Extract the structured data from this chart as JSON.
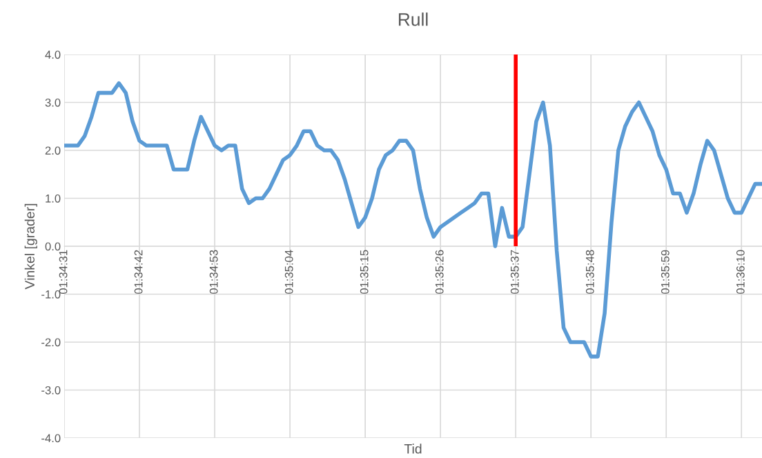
{
  "chart_data": {
    "type": "line",
    "title": "Rull",
    "xlabel": "Tid",
    "ylabel": "Vinkel [grader]",
    "categories": [
      "01:34:31",
      null,
      null,
      null,
      null,
      null,
      null,
      null,
      null,
      null,
      null,
      "01:34:42",
      null,
      null,
      null,
      null,
      null,
      null,
      null,
      null,
      null,
      null,
      "01:34:53",
      null,
      null,
      null,
      null,
      null,
      null,
      null,
      null,
      null,
      null,
      "01:35:04",
      null,
      null,
      null,
      null,
      null,
      null,
      null,
      null,
      null,
      null,
      "01:35:15",
      null,
      null,
      null,
      null,
      null,
      null,
      null,
      null,
      null,
      null,
      "01:35:26",
      null,
      null,
      null,
      null,
      null,
      null,
      null,
      null,
      null,
      null,
      "01:35:37",
      null,
      null,
      null,
      null,
      null,
      null,
      null,
      null,
      null,
      null,
      "01:35:48",
      null,
      null,
      null,
      null,
      null,
      null,
      null,
      null,
      null,
      null,
      "01:35:59",
      null,
      null,
      null,
      null,
      null,
      null,
      null,
      null,
      null,
      null,
      "01:36:10",
      null,
      null,
      null
    ],
    "series": [
      {
        "color": "#5b9bd5",
        "values": [
          2.1,
          2.1,
          2.1,
          2.3,
          2.7,
          3.2,
          3.2,
          3.2,
          3.4,
          3.2,
          2.6,
          2.2,
          2.1,
          2.1,
          2.1,
          2.1,
          1.6,
          1.6,
          1.6,
          2.2,
          2.7,
          2.4,
          2.1,
          2.0,
          2.1,
          2.1,
          1.2,
          0.9,
          1.0,
          1.0,
          1.2,
          1.5,
          1.8,
          1.9,
          2.1,
          2.4,
          2.4,
          2.1,
          2.0,
          2.0,
          1.8,
          1.4,
          0.9,
          0.4,
          0.6,
          1.0,
          1.6,
          1.9,
          2.0,
          2.2,
          2.2,
          2.0,
          1.2,
          0.6,
          0.2,
          0.4,
          0.5,
          0.6,
          0.7,
          0.8,
          0.9,
          1.1,
          1.1,
          0.0,
          0.8,
          0.2,
          0.2,
          0.4,
          1.5,
          2.6,
          3.0,
          2.1,
          -0.1,
          -1.7,
          -2.0,
          -2.0,
          -2.0,
          -2.3,
          -2.3,
          -1.4,
          0.5,
          2.0,
          2.5,
          2.8,
          3.0,
          2.7,
          2.4,
          1.9,
          1.6,
          1.1,
          1.1,
          0.7,
          1.1,
          1.7,
          2.2,
          2.0,
          1.5,
          1.0,
          0.7,
          0.7,
          1.0,
          1.3,
          1.3
        ]
      },
      {
        "color": "#ff0000",
        "x": [
          "01:35:37",
          "01:35:37"
        ],
        "values": [
          0.0,
          4.0
        ]
      }
    ],
    "ylim": [
      -4.0,
      4.0
    ],
    "yticks": [
      {
        "value": -4,
        "label": "-4.0"
      },
      {
        "value": -3,
        "label": "-3.0"
      },
      {
        "value": -2,
        "label": "-2.0"
      },
      {
        "value": -1,
        "label": "-1.0"
      },
      {
        "value": 0,
        "label": "0.0"
      },
      {
        "value": 1,
        "label": "1.0"
      },
      {
        "value": 2,
        "label": "2.0"
      },
      {
        "value": 3,
        "label": "3.0"
      },
      {
        "value": 4,
        "label": "4.0"
      }
    ],
    "grid": true,
    "line_style": "solid",
    "marker": "none"
  }
}
